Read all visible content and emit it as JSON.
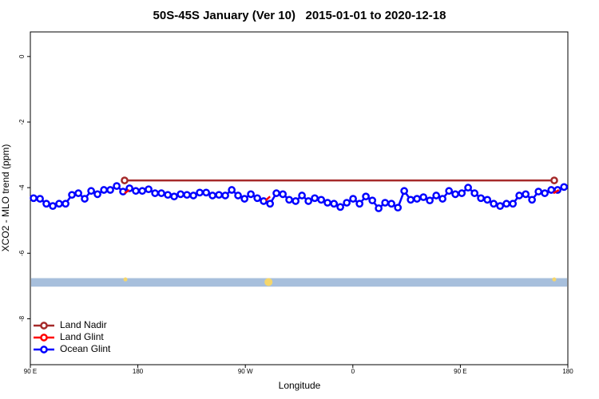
{
  "chart_data": {
    "type": "line",
    "title": "50S-45S January (Ver 10)   2015-01-01 to 2020-12-18",
    "x_label": "Longitude",
    "y_label": "XCO2 - MLO trend (ppm)",
    "xlim": [
      90,
      540
    ],
    "ylim": [
      -9.4,
      0.75
    ],
    "xticks": [
      {
        "value": 90,
        "label": "90 E"
      },
      180,
      {
        "value": 270,
        "label": "90 W"
      },
      {
        "value": 360,
        "label": "0"
      },
      {
        "value": 450,
        "label": "90 E"
      },
      {
        "value": 540,
        "label": "180"
      }
    ],
    "yticks": [
      0,
      -2,
      -4,
      -6,
      -8
    ],
    "legend": "bottom-left",
    "series": [
      {
        "name": "Land Nadir",
        "color": "#a52a2a",
        "x": [
          168.9,
          528.6
        ],
        "values": [
          -3.78,
          -3.78
        ]
      },
      {
        "name": "Land Glint",
        "color": "#ff0000",
        "x": [
          168.9,
          172.9,
          180,
          287,
          290.7,
          296,
          527.9,
          532.5
        ],
        "values": [
          -4.17,
          -4.07,
          null,
          -4.39,
          -4.27,
          null,
          -4.17,
          -4.07
        ]
      },
      {
        "name": "Ocean Glint",
        "color": "#0000ff",
        "x": [
          92.7,
          98.1,
          103.4,
          108.8,
          114.1,
          119.5,
          124.8,
          130.2,
          135.5,
          140.9,
          146.2,
          151.6,
          156.9,
          162.3,
          167.6,
          173.0,
          178.3,
          183.7,
          189.0,
          194.4,
          199.7,
          205.1,
          210.4,
          215.8,
          221.1,
          226.5,
          231.8,
          237.2,
          242.5,
          247.9,
          253.2,
          258.6,
          263.9,
          269.3,
          274.6,
          280.0,
          285.3,
          290.7,
          296.0,
          301.4,
          306.7,
          312.1,
          317.4,
          322.8,
          328.1,
          333.5,
          338.8,
          344.2,
          349.5,
          354.9,
          360.2,
          365.6,
          370.9,
          376.3,
          381.6,
          387.0,
          392.3,
          397.7,
          403.0,
          408.4,
          413.7,
          419.1,
          424.4,
          429.8,
          435.1,
          440.5,
          445.8,
          451.2,
          456.5,
          461.9,
          467.2,
          472.6,
          477.9,
          483.3,
          488.6,
          494.0,
          499.3,
          504.7,
          510.0,
          515.4,
          520.7,
          526.1,
          531.4,
          536.8
        ],
        "values": [
          -4.32,
          -4.34,
          -4.49,
          -4.56,
          -4.49,
          -4.49,
          -4.22,
          -4.17,
          -4.34,
          -4.1,
          -4.2,
          -4.07,
          -4.07,
          -3.95,
          -4.12,
          -4.02,
          -4.1,
          -4.1,
          -4.05,
          -4.17,
          -4.17,
          -4.22,
          -4.27,
          -4.2,
          -4.22,
          -4.24,
          -4.15,
          -4.15,
          -4.24,
          -4.22,
          -4.24,
          -4.07,
          -4.24,
          -4.34,
          -4.2,
          -4.32,
          -4.41,
          -4.49,
          -4.17,
          -4.2,
          -4.37,
          -4.41,
          -4.24,
          -4.41,
          -4.32,
          -4.37,
          -4.46,
          -4.49,
          -4.59,
          -4.46,
          -4.34,
          -4.49,
          -4.27,
          -4.39,
          -4.63,
          -4.46,
          -4.49,
          -4.61,
          -4.1,
          -4.37,
          -4.34,
          -4.29,
          -4.39,
          -4.24,
          -4.34,
          -4.1,
          -4.2,
          -4.17,
          -4.0,
          -4.17,
          -4.32,
          -4.37,
          -4.49,
          -4.56,
          -4.49,
          -4.49,
          -4.24,
          -4.2,
          -4.37,
          -4.12,
          -4.17,
          -4.07,
          -4.07,
          -3.98
        ]
      }
    ],
    "band": {
      "ylim": [
        -7.02,
        -6.76
      ],
      "color": "#a7bfdc"
    },
    "highlights": {
      "x": [
        169.6,
        289.4,
        528.6
      ],
      "values": [
        -6.8,
        -6.88,
        -6.8
      ],
      "color": "#f5d66b"
    }
  }
}
